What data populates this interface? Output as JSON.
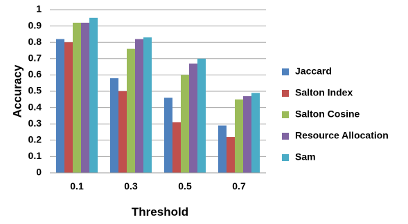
{
  "chart_data": {
    "type": "bar",
    "title": "",
    "xlabel": "Threshold",
    "ylabel": "Accuracy",
    "categories": [
      "0.1",
      "0.3",
      "0.5",
      "0.7"
    ],
    "ylim": [
      0,
      1
    ],
    "yticks": [
      "0",
      "0.1",
      "0.2",
      "0.3",
      "0.4",
      "0.5",
      "0.6",
      "0.7",
      "0.8",
      "0.9",
      "1"
    ],
    "grid": true,
    "legend_position": "right",
    "series": [
      {
        "name": "Jaccard",
        "color": "#4F81BD",
        "values": [
          0.82,
          0.58,
          0.46,
          0.29
        ]
      },
      {
        "name": "Salton Index",
        "color": "#C0504D",
        "values": [
          0.8,
          0.5,
          0.31,
          0.22
        ]
      },
      {
        "name": "Salton Cosine",
        "color": "#9BBB59",
        "values": [
          0.92,
          0.76,
          0.6,
          0.45
        ]
      },
      {
        "name": "Resource Allocation",
        "color": "#8064A2",
        "values": [
          0.92,
          0.82,
          0.67,
          0.47
        ]
      },
      {
        "name": "Sam",
        "color": "#4BACC6",
        "values": [
          0.95,
          0.83,
          0.7,
          0.49
        ]
      }
    ]
  }
}
